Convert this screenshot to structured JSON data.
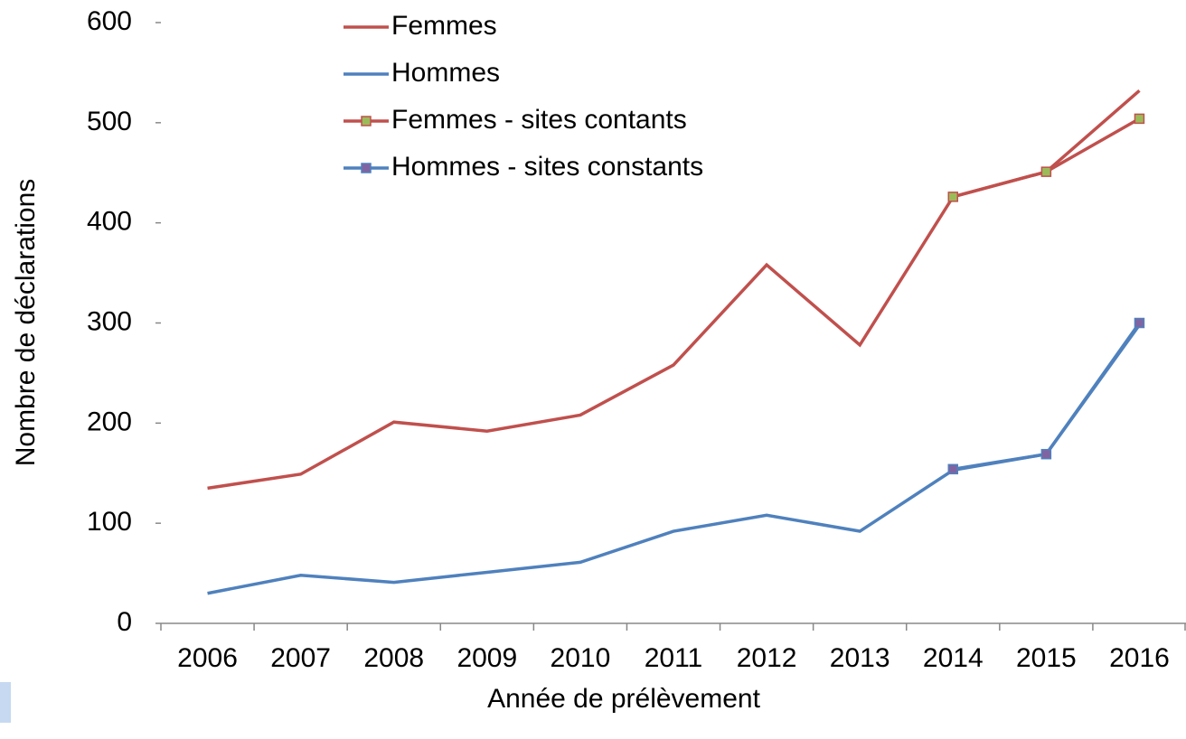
{
  "chart_data": {
    "type": "line",
    "x_label": "Année de prélèvement",
    "y_label": "Nombre  de déclarations",
    "categories": [
      "2006",
      "2007",
      "2008",
      "2009",
      "2010",
      "2011",
      "2012",
      "2013",
      "2014",
      "2015",
      "2016"
    ],
    "series": [
      {
        "name": "Femmes",
        "color": "#c0504d",
        "values": [
          135,
          149,
          201,
          192,
          208,
          258,
          358,
          278,
          426,
          451,
          532
        ]
      },
      {
        "name": "Hommes",
        "color": "#4f81bd",
        "values": [
          30,
          48,
          41,
          51,
          61,
          92,
          108,
          92,
          153,
          169,
          298
        ]
      },
      {
        "name": "Femmes - sites contants",
        "color": "#c0504d",
        "marker_color": "#9bbb59",
        "values": [
          null,
          null,
          null,
          null,
          null,
          null,
          null,
          null,
          426,
          451,
          504
        ]
      },
      {
        "name": "Hommes - sites constants",
        "color": "#4f81bd",
        "marker_color": "#8064a2",
        "values": [
          null,
          null,
          null,
          null,
          null,
          null,
          null,
          null,
          154,
          169,
          300
        ]
      }
    ],
    "ylim": [
      0,
      600
    ],
    "yticks": [
      0,
      100,
      200,
      300,
      400,
      500,
      600
    ]
  }
}
